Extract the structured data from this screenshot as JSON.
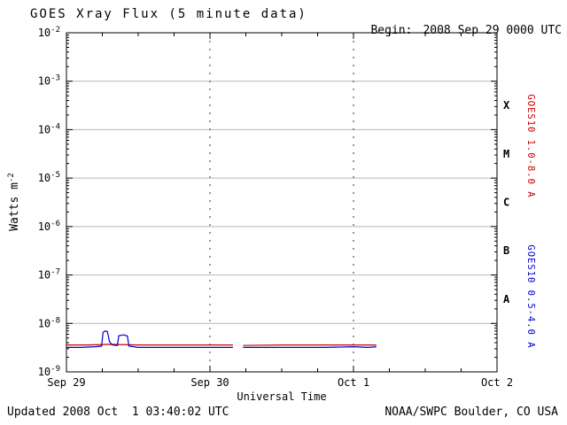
{
  "header": {
    "title": "GOES Xray Flux (5 minute data)",
    "begin_label": "Begin:",
    "begin_value": "2008 Sep 29 0000 UTC"
  },
  "footer": {
    "updated": "Updated 2008 Oct  1 03:40:02 UTC",
    "source": "NOAA/SWPC Boulder, CO USA"
  },
  "chart_data": {
    "type": "line",
    "title": "GOES Xray Flux (5 minute data)",
    "xlabel": "Universal Time",
    "ylabel_base": "Watts m",
    "ylabel_exponent": "-2",
    "x_range_days": [
      0,
      3
    ],
    "x_ticks": [
      {
        "t": 0,
        "label": "Sep 29"
      },
      {
        "t": 1,
        "label": "Sep 30"
      },
      {
        "t": 2,
        "label": "Oct 1"
      },
      {
        "t": 3,
        "label": "Oct 2"
      }
    ],
    "x_minor_tick_days": 0.25,
    "y_tick_exponents": [
      -2,
      -3,
      -4,
      -5,
      -6,
      -7,
      -8,
      -9
    ],
    "ylim": [
      1e-09,
      0.01
    ],
    "grid": {
      "h_decades": [
        -3,
        -4,
        -5,
        -6,
        -7,
        -8
      ],
      "v_dashed_days": [
        1,
        2
      ]
    },
    "flare_classes": [
      {
        "label": "X",
        "log_center": -3.5
      },
      {
        "label": "M",
        "log_center": -4.5
      },
      {
        "label": "C",
        "log_center": -5.5
      },
      {
        "label": "B",
        "log_center": -6.5
      },
      {
        "label": "A",
        "log_center": -7.5
      }
    ],
    "series": [
      {
        "name": "GOES10 1.0-8.0 A",
        "color": "#cc0000",
        "segments": [
          [
            [
              0.0,
              3.6e-09
            ],
            [
              0.15,
              3.6e-09
            ],
            [
              0.3,
              3.7e-09
            ],
            [
              0.5,
              3.6e-09
            ],
            [
              0.75,
              3.6e-09
            ],
            [
              1.0,
              3.6e-09
            ],
            [
              1.16,
              3.6e-09
            ]
          ],
          [
            [
              1.23,
              3.5e-09
            ],
            [
              1.5,
              3.6e-09
            ],
            [
              1.75,
              3.6e-09
            ],
            [
              2.0,
              3.6e-09
            ],
            [
              2.16,
              3.6e-09
            ]
          ]
        ]
      },
      {
        "name": "GOES10 0.5-4.0 A",
        "color": "#0000cc",
        "segments": [
          [
            [
              0.0,
              3.2e-09
            ],
            [
              0.1,
              3.2e-09
            ],
            [
              0.2,
              3.3e-09
            ],
            [
              0.245,
              3.4e-09
            ],
            [
              0.255,
              6.5e-09
            ],
            [
              0.27,
              7e-09
            ],
            [
              0.285,
              6.8e-09
            ],
            [
              0.3,
              4.2e-09
            ],
            [
              0.32,
              3.6e-09
            ],
            [
              0.355,
              3.5e-09
            ],
            [
              0.365,
              5.6e-09
            ],
            [
              0.4,
              5.8e-09
            ],
            [
              0.425,
              5.5e-09
            ],
            [
              0.435,
              3.4e-09
            ],
            [
              0.5,
              3.2e-09
            ],
            [
              0.7,
              3.2e-09
            ],
            [
              0.9,
              3.2e-09
            ],
            [
              1.05,
              3.2e-09
            ],
            [
              1.16,
              3.2e-09
            ]
          ],
          [
            [
              1.23,
              3.2e-09
            ],
            [
              1.4,
              3.2e-09
            ],
            [
              1.6,
              3.2e-09
            ],
            [
              1.8,
              3.2e-09
            ],
            [
              2.0,
              3.3e-09
            ],
            [
              2.1,
              3.2e-09
            ],
            [
              2.16,
              3.3e-09
            ]
          ]
        ]
      }
    ]
  }
}
